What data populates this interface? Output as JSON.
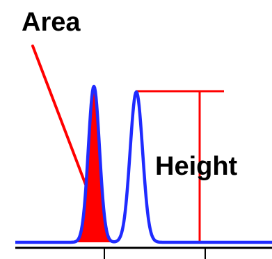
{
  "labels": {
    "area": "Area",
    "height": "Height"
  },
  "colors": {
    "trace": "#1f2bff",
    "annotation": "#ff0000",
    "axis": "#000000",
    "background": "#ffffff"
  }
}
